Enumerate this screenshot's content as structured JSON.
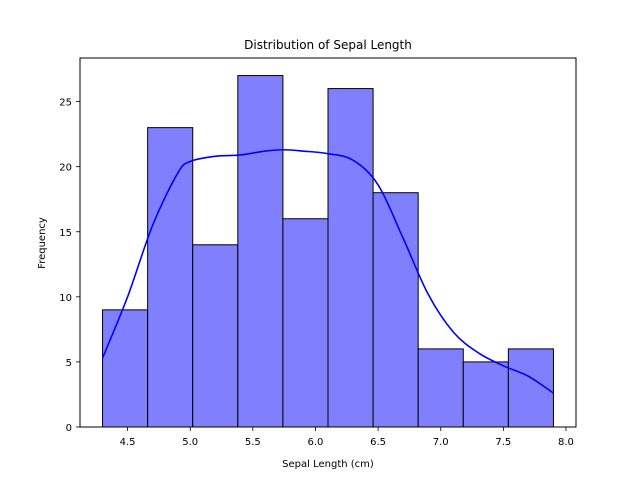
{
  "chart_data": {
    "type": "bar",
    "title": "Distribution of Sepal Length",
    "xlabel": "Sepal Length (cm)",
    "ylabel": "Frequency",
    "bins": [
      {
        "x0": 4.3,
        "x1": 4.66,
        "count": 9
      },
      {
        "x0": 4.66,
        "x1": 5.02,
        "count": 23
      },
      {
        "x0": 5.02,
        "x1": 5.38,
        "count": 14
      },
      {
        "x0": 5.38,
        "x1": 5.74,
        "count": 27
      },
      {
        "x0": 5.74,
        "x1": 6.1,
        "count": 16
      },
      {
        "x0": 6.1,
        "x1": 6.46,
        "count": 26
      },
      {
        "x0": 6.46,
        "x1": 6.82,
        "count": 18
      },
      {
        "x0": 6.82,
        "x1": 7.18,
        "count": 6
      },
      {
        "x0": 7.18,
        "x1": 7.54,
        "count": 5
      },
      {
        "x0": 7.54,
        "x1": 7.9,
        "count": 6
      }
    ],
    "kde": {
      "x": [
        4.3,
        4.5,
        4.7,
        4.9,
        5.0,
        5.2,
        5.4,
        5.6,
        5.75,
        5.9,
        6.1,
        6.3,
        6.5,
        6.7,
        6.9,
        7.1,
        7.3,
        7.5,
        7.7,
        7.9
      ],
      "y": [
        5.3,
        10.0,
        15.5,
        19.5,
        20.4,
        20.8,
        20.9,
        21.2,
        21.3,
        21.2,
        21.0,
        20.5,
        18.6,
        14.5,
        10.2,
        7.3,
        5.7,
        4.7,
        3.9,
        2.6
      ]
    },
    "xlim": [
      4.12,
      8.08
    ],
    "ylim": [
      0,
      28.35
    ],
    "xticks": [
      "4.5",
      "5.0",
      "5.5",
      "6.0",
      "6.5",
      "7.0",
      "7.5",
      "8.0"
    ],
    "xtick_values": [
      4.5,
      5.0,
      5.5,
      6.0,
      6.5,
      7.0,
      7.5,
      8.0
    ],
    "yticks": [
      "0",
      "5",
      "10",
      "15",
      "20",
      "25"
    ],
    "ytick_values": [
      0,
      5,
      10,
      15,
      20,
      25
    ],
    "grid": false,
    "colors": {
      "bar_fill": "#8080ff",
      "bar_edge": "#000000",
      "kde_line": "#0000ff"
    }
  }
}
